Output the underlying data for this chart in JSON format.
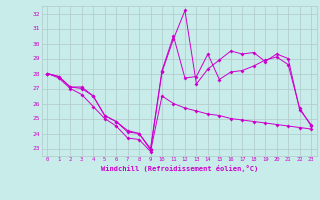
{
  "xlabel": "Windchill (Refroidissement éolien,°C)",
  "background_color": "#c8ecea",
  "line_color": "#cc00cc",
  "grid_color": "#b0c8c8",
  "xlim": [
    -0.5,
    23.5
  ],
  "ylim": [
    22.5,
    32.5
  ],
  "yticks": [
    23,
    24,
    25,
    26,
    27,
    28,
    29,
    30,
    31,
    32
  ],
  "xticks": [
    0,
    1,
    2,
    3,
    4,
    5,
    6,
    7,
    8,
    9,
    10,
    11,
    12,
    13,
    14,
    15,
    16,
    17,
    18,
    19,
    20,
    21,
    22,
    23
  ],
  "series": [
    [
      28.0,
      27.8,
      27.1,
      27.0,
      26.5,
      25.2,
      24.8,
      24.1,
      24.0,
      22.9,
      28.1,
      30.3,
      32.2,
      27.3,
      28.3,
      28.9,
      29.5,
      29.3,
      29.4,
      28.8,
      29.3,
      29.0,
      25.6,
      24.6
    ],
    [
      28.0,
      27.8,
      27.1,
      27.1,
      26.5,
      25.2,
      24.8,
      24.2,
      24.0,
      23.0,
      28.2,
      30.5,
      27.7,
      27.8,
      29.3,
      27.6,
      28.1,
      28.2,
      28.5,
      28.9,
      29.1,
      28.6,
      25.7,
      24.5
    ],
    [
      28.0,
      27.7,
      27.0,
      26.6,
      25.8,
      25.0,
      24.5,
      23.7,
      23.6,
      22.8,
      26.5,
      26.0,
      25.7,
      25.5,
      25.3,
      25.2,
      25.0,
      24.9,
      24.8,
      24.7,
      24.6,
      24.5,
      24.4,
      24.3
    ]
  ]
}
